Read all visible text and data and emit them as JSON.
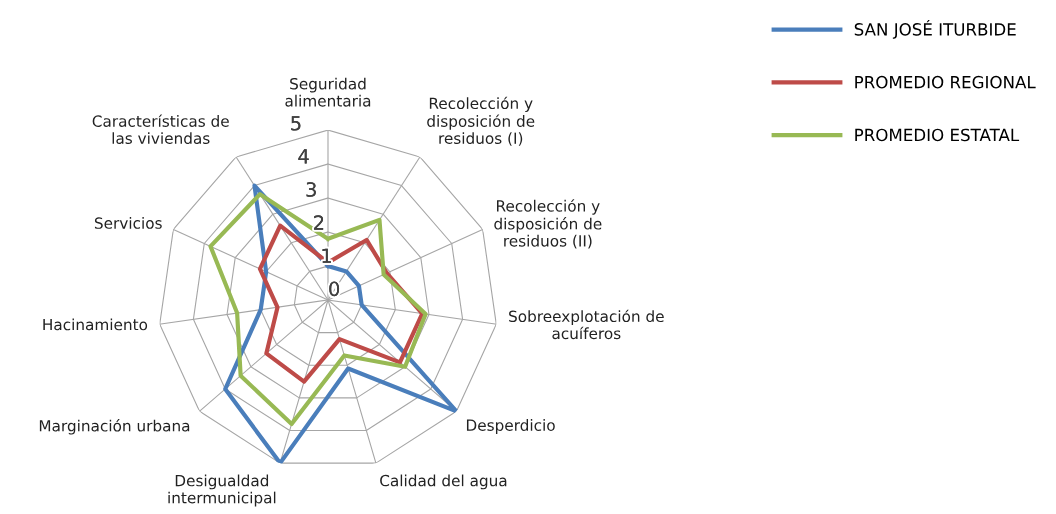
{
  "chart_data": {
    "type": "radar",
    "categories": [
      "Seguridad alimentaria",
      "Recolección y disposición de residuos (I)",
      "Recolección y disposición de residuos (II)",
      "Sobreexplotación de acuíferos",
      "Desperdicio",
      "Calidad del agua",
      "Desigualdad intermunicipal",
      "Marginación urbana",
      "Hacinamiento",
      "Servicios",
      "Características de las viviendas"
    ],
    "series": [
      {
        "name": "SAN JOSÉ ITURBIDE",
        "color": "#4a7ebb",
        "values": [
          1.0,
          1.0,
          1.0,
          1.0,
          5.0,
          2.1,
          5.0,
          4.0,
          2.0,
          2.0,
          4.0
        ]
      },
      {
        "name": "PROMEDIO REGIONAL",
        "color": "#be4b48",
        "values": [
          1.1,
          2.1,
          1.9,
          2.8,
          2.8,
          1.2,
          2.5,
          2.4,
          1.5,
          2.2,
          2.6
        ]
      },
      {
        "name": "PROMEDIO ESTATAL",
        "color": "#98b954",
        "values": [
          1.8,
          2.8,
          1.8,
          2.9,
          3.0,
          1.7,
          3.8,
          3.4,
          2.7,
          3.8,
          3.7
        ]
      }
    ],
    "ylim": [
      0,
      5
    ],
    "yticks": [
      0,
      1,
      2,
      3,
      4,
      5
    ],
    "legend": "top right",
    "grid": true,
    "marker": "none",
    "line_style": "solid"
  }
}
